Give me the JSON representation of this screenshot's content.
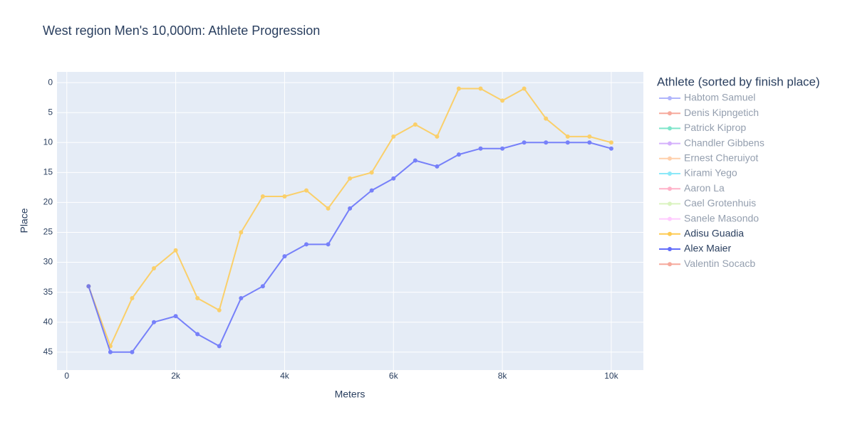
{
  "chart_data": {
    "type": "line",
    "title": "West region Men's 10,000m: Athlete Progression",
    "x_label": "Meters",
    "y_label": "Place",
    "legend_title": "Athlete (sorted by finish place)",
    "x": [
      400,
      800,
      1200,
      1600,
      2000,
      2400,
      2800,
      3200,
      3600,
      4000,
      4400,
      4800,
      5200,
      5600,
      6000,
      6400,
      6800,
      7200,
      7600,
      8000,
      8400,
      8800,
      9200,
      9600,
      10000
    ],
    "xlim": [
      -180,
      10590
    ],
    "xticks": [
      0,
      {
        "value": 2000,
        "label": "2k"
      },
      {
        "value": 4000,
        "label": "4k"
      },
      {
        "value": 6000,
        "label": "6k"
      },
      {
        "value": 8000,
        "label": "8k"
      },
      {
        "value": 10000,
        "label": "10k"
      }
    ],
    "ylim": [
      48,
      -1.8
    ],
    "yticks": [
      0,
      5,
      10,
      15,
      20,
      25,
      30,
      35,
      40,
      45
    ],
    "grid": true,
    "legend_position": "right",
    "series": [
      {
        "name": "Habtom Samuel",
        "color": "#636efa",
        "visible": "legendonly"
      },
      {
        "name": "Denis Kipngetich",
        "color": "#EF553B",
        "visible": "legendonly"
      },
      {
        "name": "Patrick Kiprop",
        "color": "#00cc96",
        "visible": "legendonly"
      },
      {
        "name": "Chandler Gibbens",
        "color": "#ab63fa",
        "visible": "legendonly"
      },
      {
        "name": "Ernest Cheruiyot",
        "color": "#FFA15A",
        "visible": "legendonly"
      },
      {
        "name": "Kirami Yego",
        "color": "#19d3f3",
        "visible": "legendonly"
      },
      {
        "name": "Aaron La",
        "color": "#FF6692",
        "visible": "legendonly"
      },
      {
        "name": "Cael Grotenhuis",
        "color": "#B6E880",
        "visible": "legendonly"
      },
      {
        "name": "Sanele Masondo",
        "color": "#FF97FF",
        "visible": "legendonly"
      },
      {
        "name": "Adisu Guadia",
        "color": "#FECB52",
        "values": [
          34,
          44,
          36,
          31,
          28,
          36,
          38,
          25,
          19,
          19,
          18,
          21,
          16,
          15,
          9,
          7,
          9,
          1,
          1,
          3,
          1,
          6,
          9,
          9,
          10
        ]
      },
      {
        "name": "Alex Maier",
        "color": "#636efa",
        "values": [
          34,
          45,
          45,
          40,
          39,
          42,
          44,
          36,
          34,
          29,
          27,
          27,
          21,
          18,
          16,
          13,
          14,
          12,
          11,
          11,
          10,
          10,
          10,
          10,
          11
        ]
      },
      {
        "name": "Valentin Socacb",
        "color": "#EF553B",
        "visible": "legendonly"
      }
    ]
  }
}
